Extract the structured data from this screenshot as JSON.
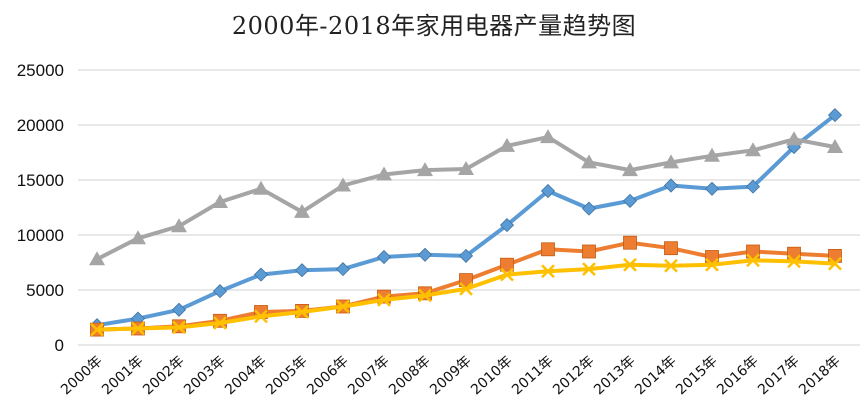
{
  "chart_data": {
    "type": "line",
    "title": "2000年-2018年家用电器产量趋势图",
    "xlabel": "",
    "ylabel": "",
    "categories": [
      "2000年",
      "2001年",
      "2002年",
      "2003年",
      "2004年",
      "2005年",
      "2006年",
      "2007年",
      "2008年",
      "2009年",
      "2010年",
      "2011年",
      "2012年",
      "2013年",
      "2014年",
      "2015年",
      "2016年",
      "2017年",
      "2018年"
    ],
    "ylim": [
      0,
      25000
    ],
    "yticks": [
      "0",
      "5000",
      "10000",
      "15000",
      "20000",
      "25000"
    ],
    "grid": true,
    "legend": "none",
    "series": [
      {
        "color": "#5b9bd5",
        "marker": "diamond",
        "values": [
          1800,
          2400,
          3200,
          4900,
          6400,
          6800,
          6900,
          8000,
          8200,
          8100,
          10900,
          14000,
          12400,
          13100,
          14500,
          14200,
          14400,
          18000,
          20900
        ]
      },
      {
        "color": "#ed7d31",
        "marker": "square",
        "values": [
          1400,
          1500,
          1700,
          2200,
          3000,
          3100,
          3500,
          4400,
          4700,
          5900,
          7300,
          8700,
          8500,
          9300,
          8800,
          8000,
          8500,
          8300,
          8100
        ]
      },
      {
        "color": "#a5a5a5",
        "marker": "triangle",
        "values": [
          7800,
          9700,
          10800,
          13000,
          14200,
          12100,
          14500,
          15500,
          15900,
          16000,
          18100,
          18900,
          16600,
          15900,
          16600,
          17200,
          17700,
          18700,
          18000
        ]
      },
      {
        "color": "#ffc000",
        "marker": "x",
        "values": [
          1400,
          1500,
          1600,
          2000,
          2600,
          3000,
          3500,
          4100,
          4500,
          5100,
          6400,
          6700,
          6900,
          7300,
          7200,
          7300,
          7700,
          7600,
          7400
        ]
      }
    ]
  }
}
